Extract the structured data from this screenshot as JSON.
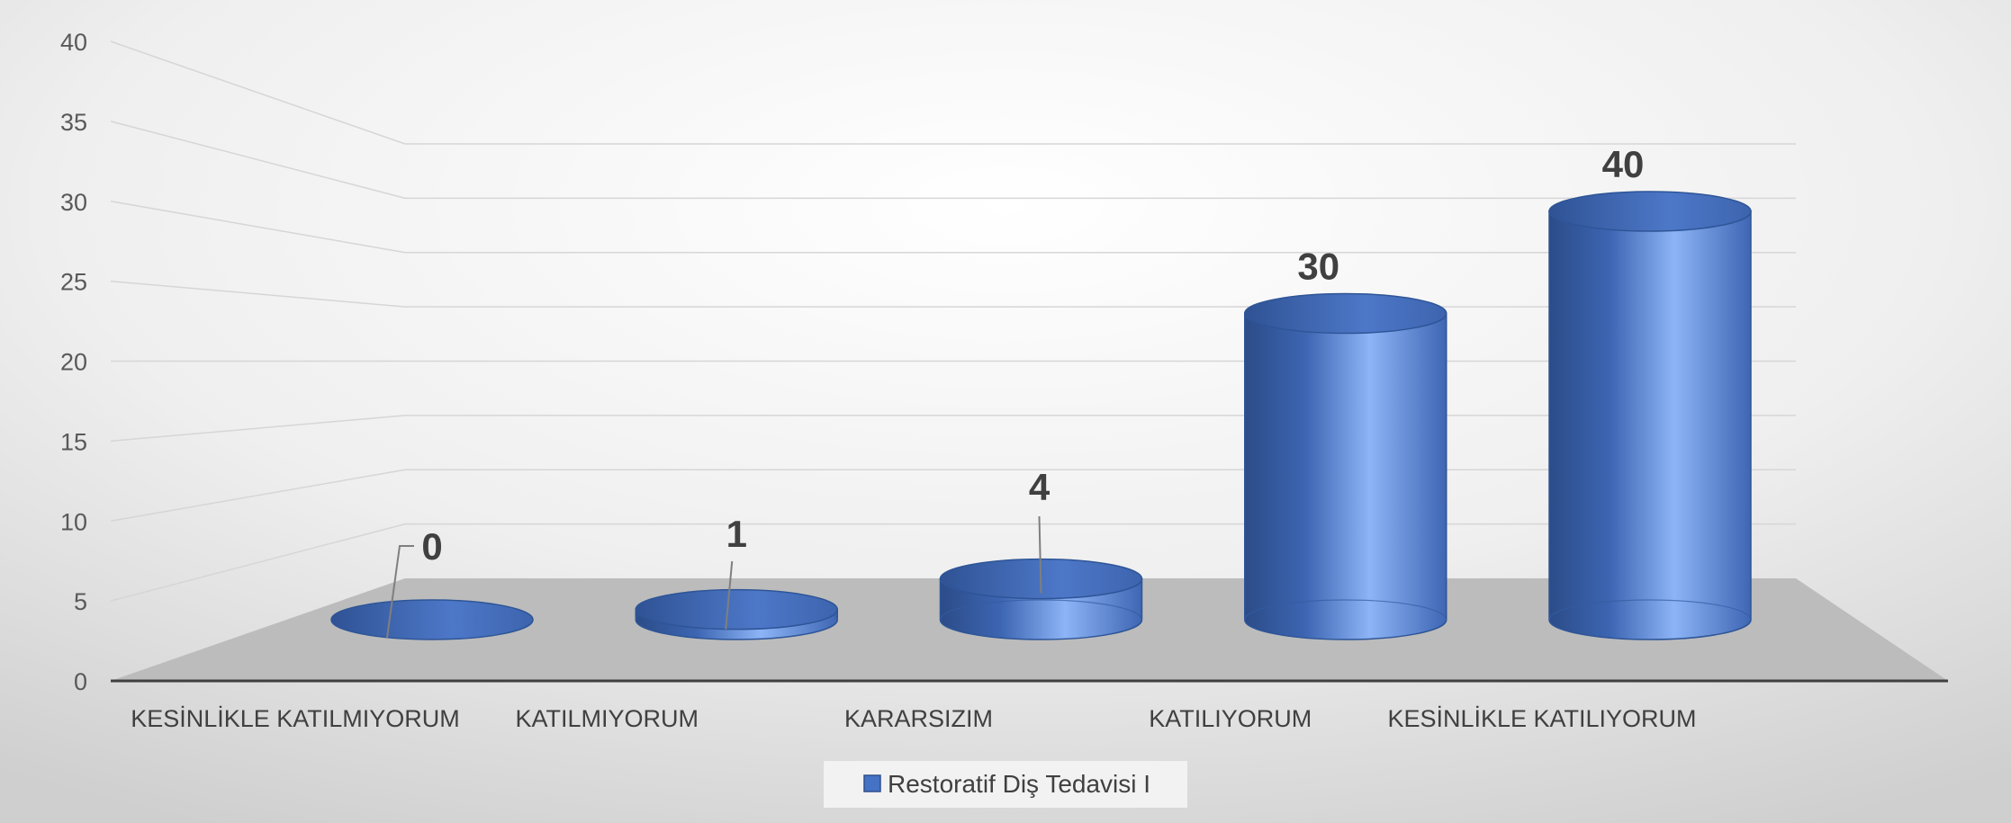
{
  "chart_data": {
    "type": "bar",
    "style": "3d-cylinder",
    "categories": [
      "KESİNLİKLE KATILMIYORUM",
      "KATILMIYORUM",
      "KARARSIZIM",
      "KATILIYORUM",
      "KESİNLİKLE KATILIYORUM"
    ],
    "series": [
      {
        "name": "Restoratif Diş Tedavisi I",
        "values": [
          0,
          1,
          4,
          30,
          40
        ],
        "color": "#4472c4"
      }
    ],
    "data_labels": [
      "0",
      "1",
      "4",
      "30",
      "40"
    ],
    "ylim": [
      0,
      40
    ],
    "yticks": [
      0,
      5,
      10,
      15,
      20,
      25,
      30,
      35,
      40
    ],
    "grid": true,
    "legend_position": "bottom",
    "colors": {
      "bar": "#4472c4",
      "bar_dark": "#2e4f8c",
      "bar_light": "#8fb4f5",
      "floor": "#bdbdbd"
    }
  }
}
